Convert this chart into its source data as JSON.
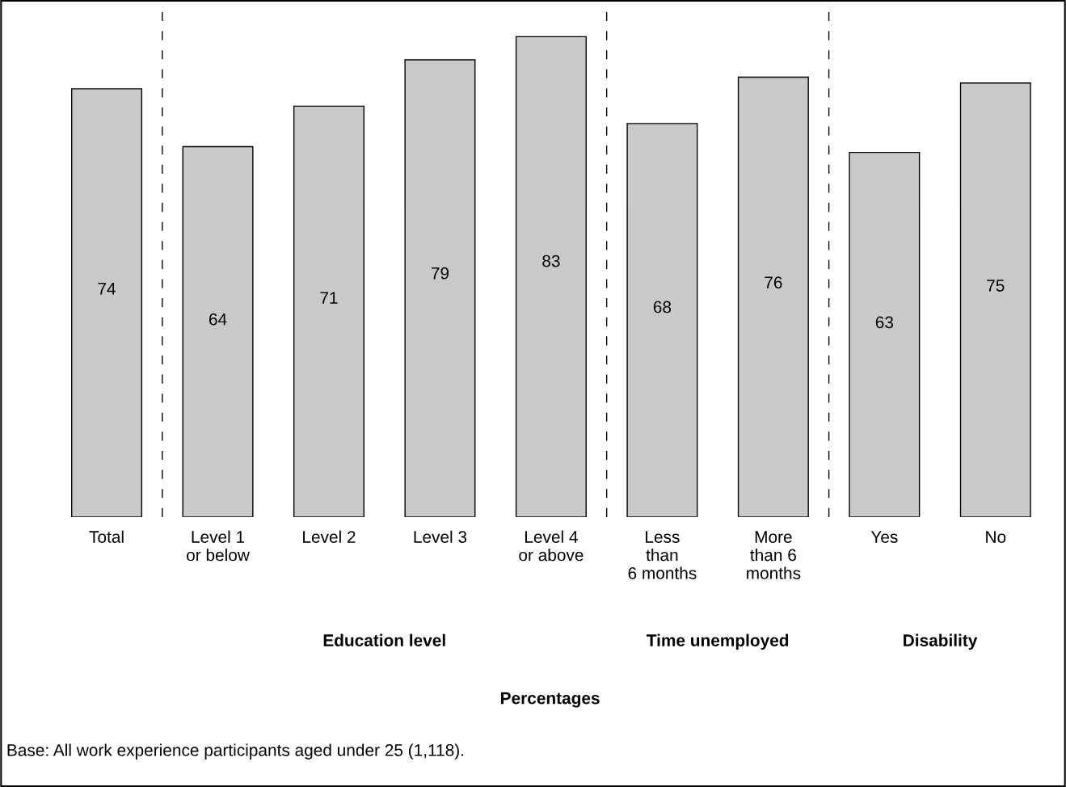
{
  "chart_data": {
    "type": "bar",
    "categories": [
      "Total",
      "Level 1\nor below",
      "Level 2",
      "Level 3",
      "Level 4\nor above",
      "Less\nthan\n6 months",
      "More\nthan 6\nmonths",
      "Yes",
      "No"
    ],
    "values": [
      74,
      64,
      71,
      79,
      83,
      68,
      76,
      63,
      75
    ],
    "color": "#c8c9cb",
    "data_labels": true,
    "annotations": [
      "Education level",
      "Time unemployed",
      "Disability",
      "Percentages",
      "Base: All work experience participants aged under 25 (1,118)."
    ],
    "grid": false,
    "legend": false
  }
}
